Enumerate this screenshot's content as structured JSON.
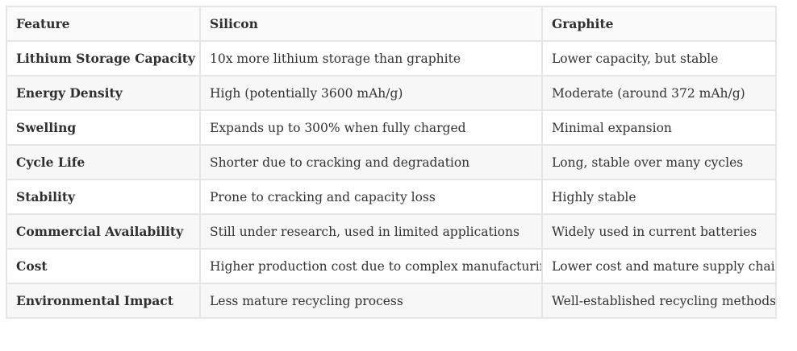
{
  "table": {
    "headers": [
      "Feature",
      "Silicon",
      "Graphite"
    ],
    "rows": [
      [
        "Lithium Storage Capacity",
        "10x more lithium storage than graphite",
        "Lower capacity, but stable"
      ],
      [
        "Energy Density",
        "High (potentially 3600 mAh/g)",
        "Moderate (around 372 mAh/g)"
      ],
      [
        "Swelling",
        "Expands up to 300% when fully charged",
        "Minimal expansion"
      ],
      [
        "Cycle Life",
        "Shorter due to cracking and degradation",
        "Long, stable over many cycles"
      ],
      [
        "Stability",
        "Prone to cracking and capacity loss",
        "Highly stable"
      ],
      [
        "Commercial Availability",
        "Still under research, used in limited applications",
        "Widely used in current batteries"
      ],
      [
        "Cost",
        "Higher production cost due to complex manufacturing",
        "Lower cost and mature supply chain"
      ],
      [
        "Environmental Impact",
        "Less mature recycling process",
        "Well-established recycling methods"
      ]
    ]
  }
}
